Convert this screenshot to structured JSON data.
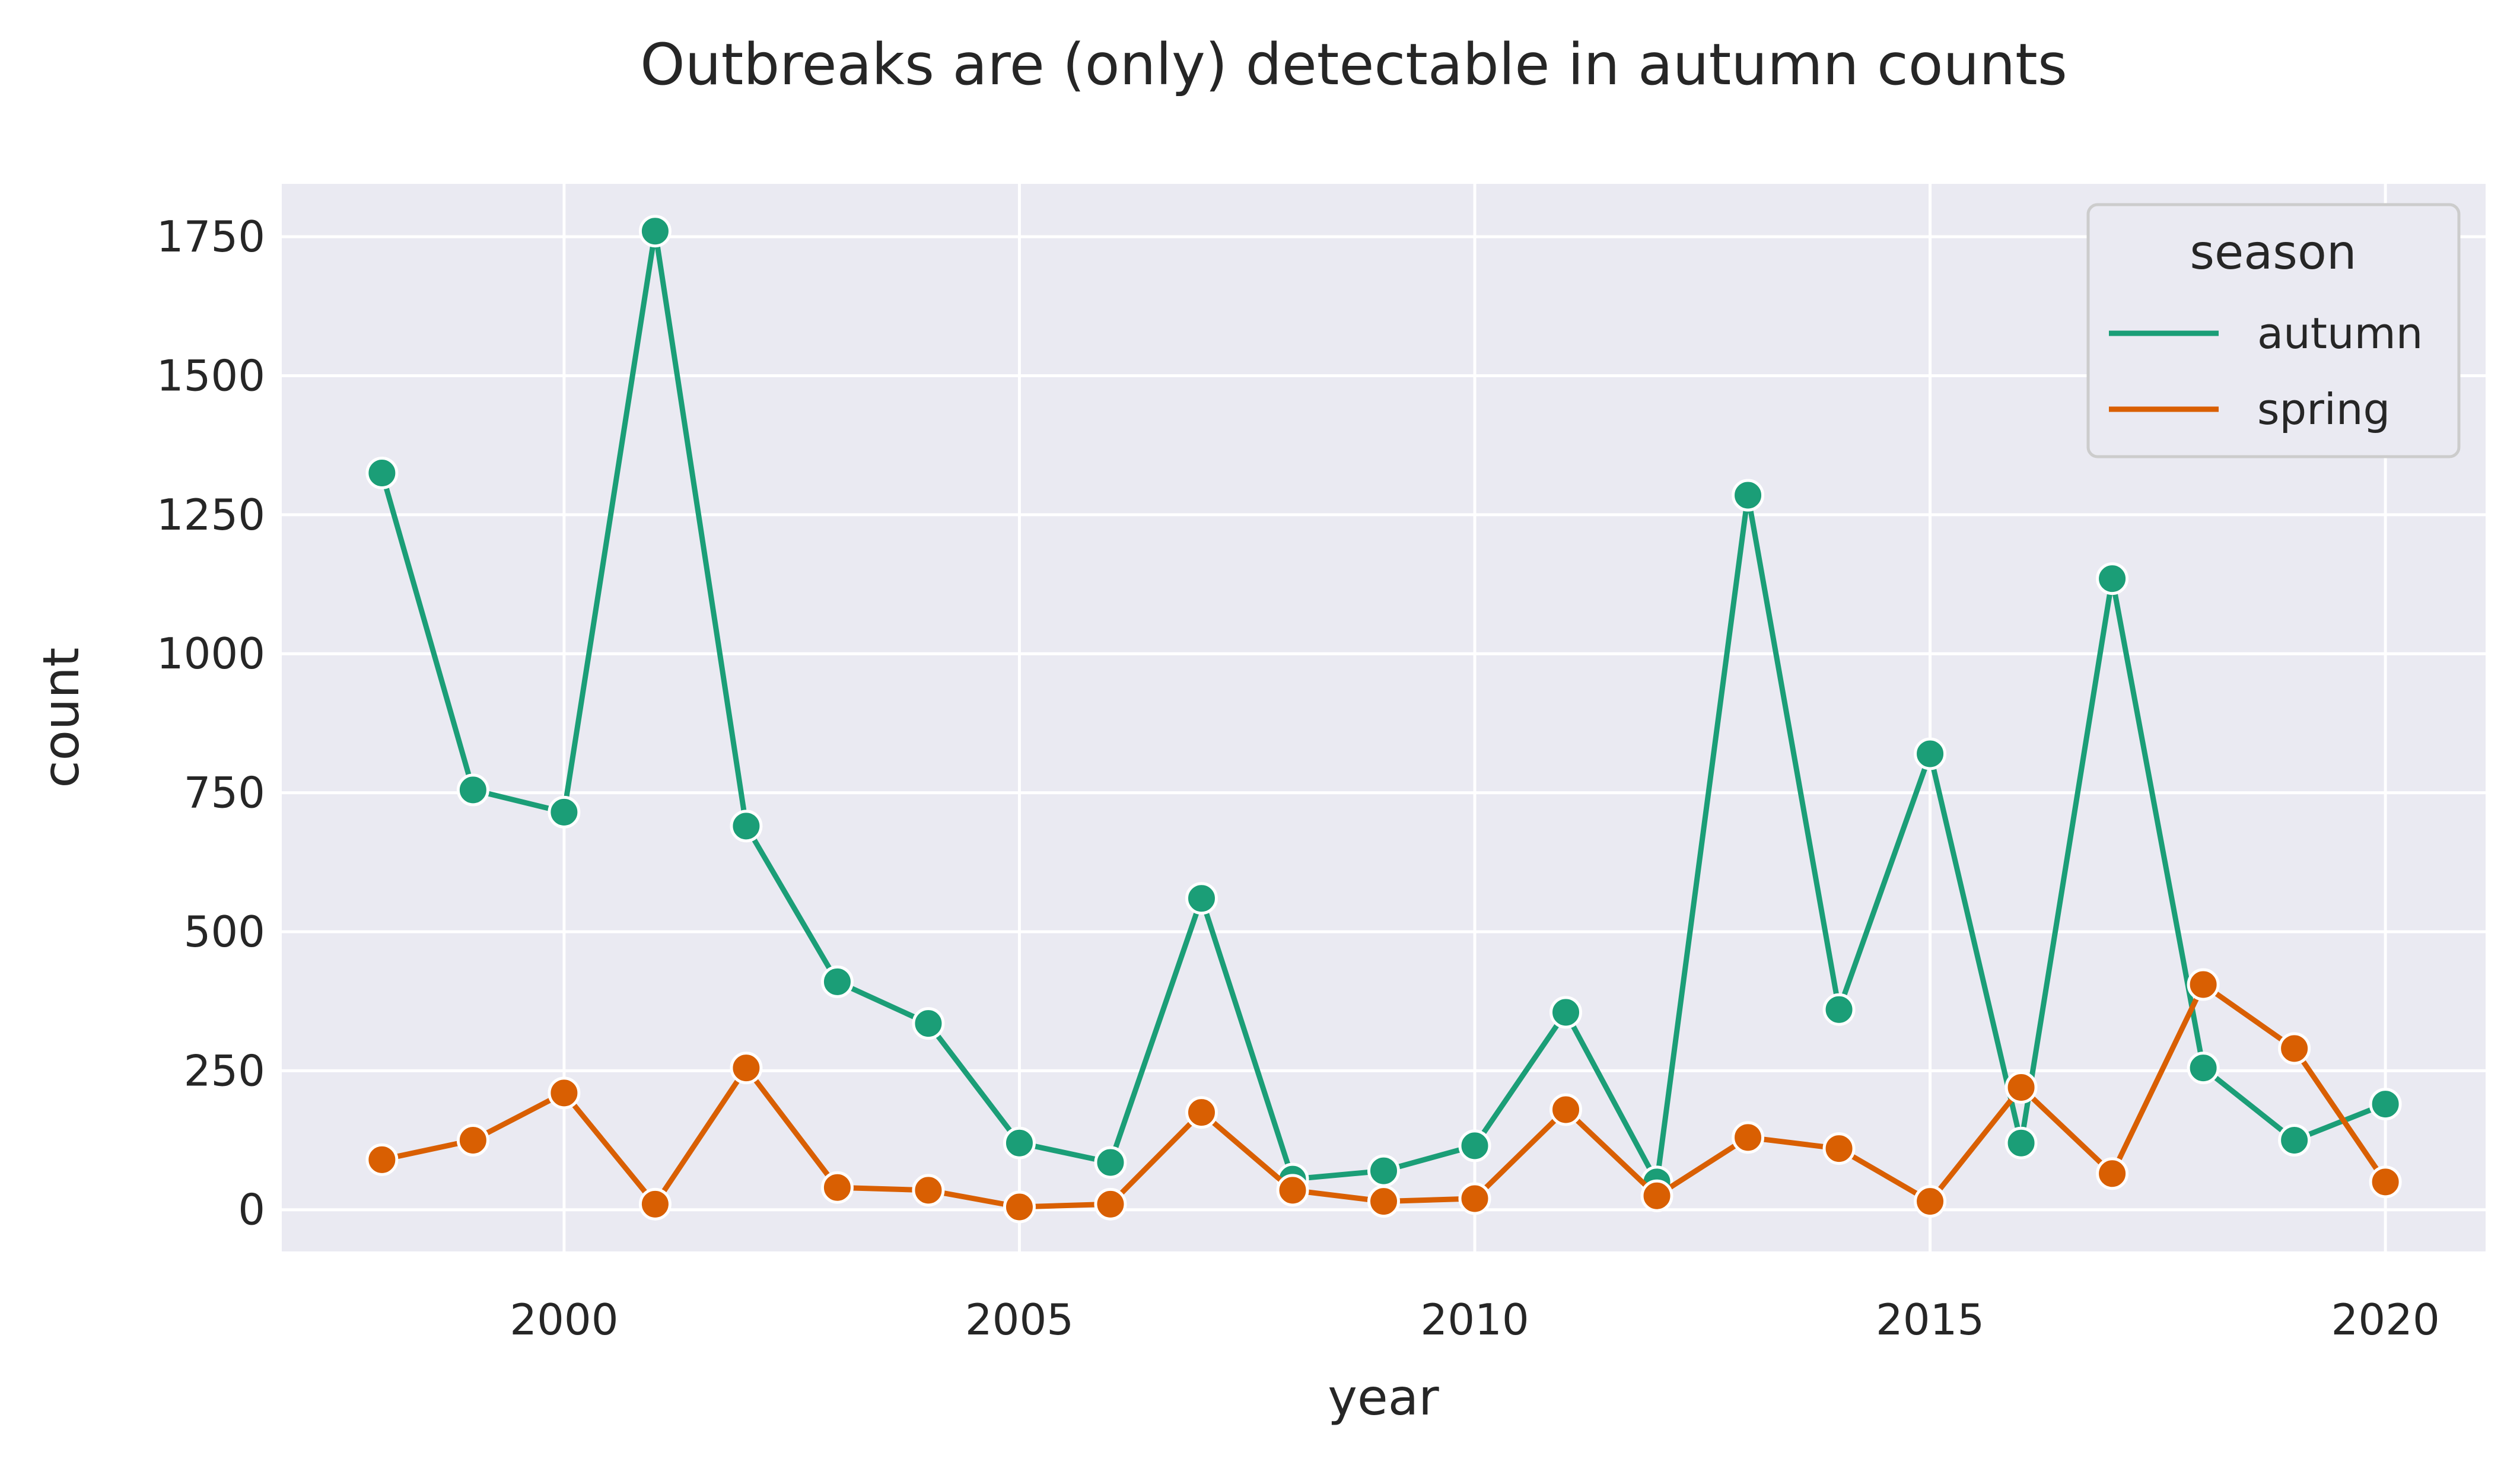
{
  "chart_data": {
    "type": "line",
    "title": "Outbreaks are (only) detectable in autumn counts",
    "xlabel": "year",
    "ylabel": "count",
    "xlim": [
      1996.9,
      2021.1
    ],
    "ylim": [
      -75,
      1845
    ],
    "xticks": [
      2000,
      2005,
      2010,
      2015,
      2020
    ],
    "yticks": [
      0,
      250,
      500,
      750,
      1000,
      1250,
      1500,
      1750
    ],
    "grid": true,
    "legend": {
      "title": "season",
      "placement": "top-right"
    },
    "x": [
      1998,
      1999,
      2000,
      2001,
      2002,
      2003,
      2004,
      2005,
      2006,
      2007,
      2008,
      2009,
      2010,
      2011,
      2012,
      2013,
      2014,
      2015,
      2016,
      2017,
      2018,
      2019,
      2020
    ],
    "series": [
      {
        "name": "autumn",
        "color": "#1b9e77",
        "values": [
          1325,
          755,
          715,
          1760,
          690,
          410,
          335,
          120,
          85,
          560,
          55,
          70,
          115,
          355,
          50,
          1285,
          360,
          820,
          120,
          1135,
          255,
          125,
          190
        ]
      },
      {
        "name": "spring",
        "color": "#d95f02",
        "values": [
          90,
          125,
          210,
          10,
          255,
          40,
          35,
          5,
          10,
          175,
          35,
          15,
          20,
          180,
          25,
          130,
          110,
          15,
          220,
          65,
          405,
          290,
          50
        ]
      }
    ]
  }
}
